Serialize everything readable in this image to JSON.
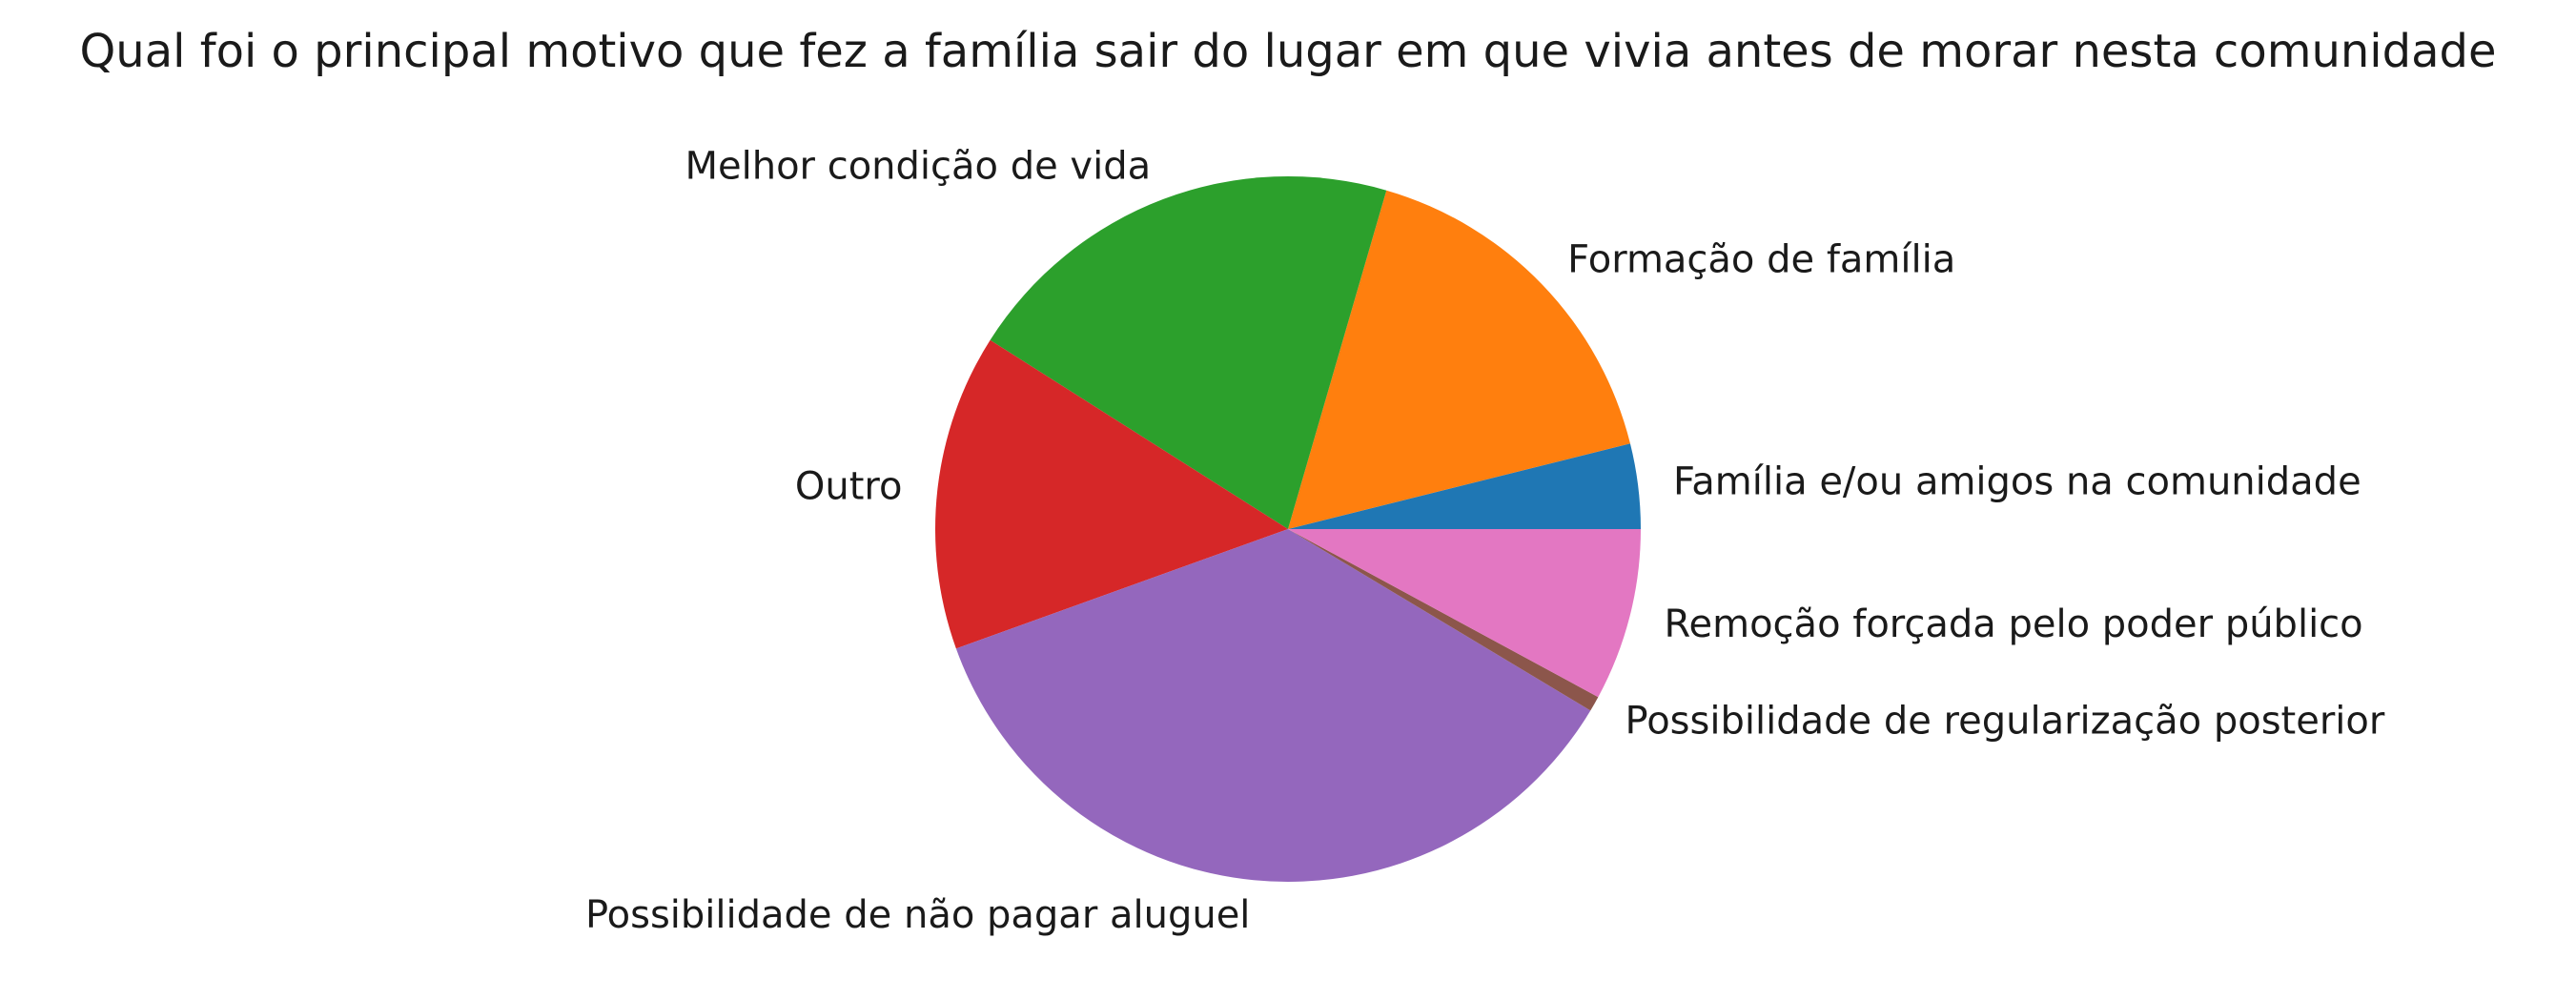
{
  "chart_data": {
    "type": "pie",
    "title": "Qual foi o principal motivo que fez a família sair do lugar em que vivia antes de morar nesta comunidade",
    "start_angle_deg": 0,
    "direction": "counterclockwise",
    "slices": [
      {
        "label": "Família e/ou amigos na comunidade",
        "value": 3.9,
        "color": "#1f77b4"
      },
      {
        "label": "Formação de família",
        "value": 16.6,
        "color": "#ff7f0e"
      },
      {
        "label": "Melhor condição de vida",
        "value": 20.5,
        "color": "#2ca02c"
      },
      {
        "label": "Outro",
        "value": 14.5,
        "color": "#d62728"
      },
      {
        "label": "Possibilidade de não pagar aluguel",
        "value": 35.9,
        "color": "#9467bd"
      },
      {
        "label": "Possibilidade de regularização posterior",
        "value": 0.7,
        "color": "#8c564b"
      },
      {
        "label": "Remoção forçada pelo poder público",
        "value": 7.9,
        "color": "#e377c2"
      }
    ]
  }
}
